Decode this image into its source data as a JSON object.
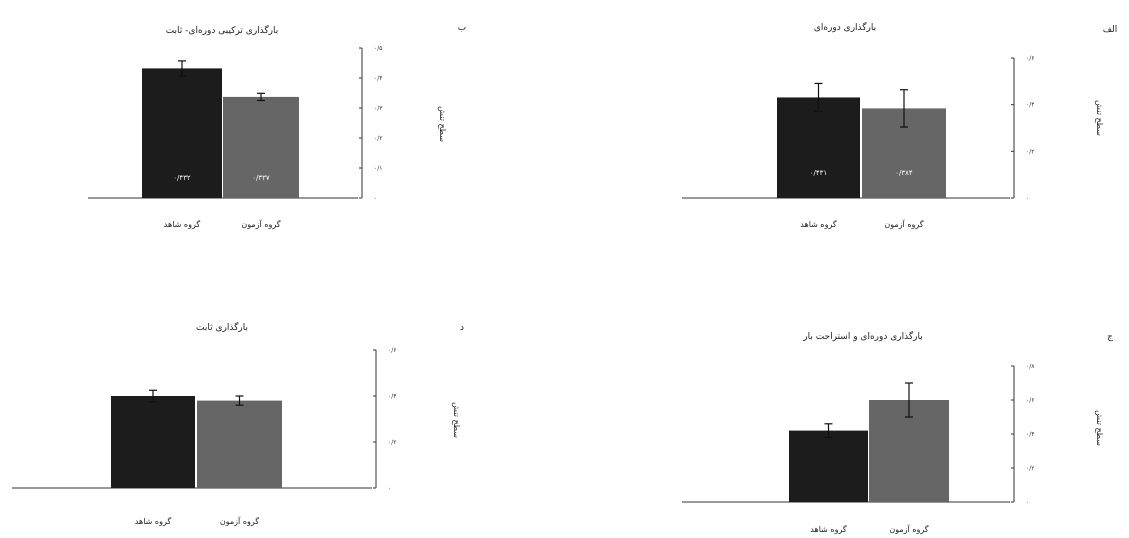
{
  "chart_data": [
    {
      "type": "bar",
      "panel_letter": "الف",
      "title": "بارگذاری دوره‌ای",
      "ylabel": "سطح تنش",
      "categories": [
        "گروه شاهد",
        "گروه آزمون"
      ],
      "values": [
        0.431,
        0.384
      ],
      "errors": [
        0.06,
        0.08
      ],
      "colors": [
        "#1c1c1c",
        "#666666"
      ],
      "data_labels": [
        "۰/۴۳۱",
        "۰/۳۸۴"
      ],
      "ylim": [
        0,
        0.6
      ],
      "yticks": [
        0,
        0.2,
        0.4,
        0.6
      ],
      "ytick_labels": [
        "۰",
        "۰/۲",
        "۰/۴",
        "۰/۶"
      ]
    },
    {
      "type": "bar",
      "panel_letter": "ب",
      "title": "بارگذاری ترکیبی دوره‌ای- ثابت",
      "ylabel": "سطح تنش",
      "categories": [
        "گروه شاهد",
        "گروه آزمون"
      ],
      "values": [
        0.432,
        0.337
      ],
      "errors": [
        0.025,
        0.012
      ],
      "colors": [
        "#1c1c1c",
        "#666666"
      ],
      "data_labels": [
        "۰/۴۳۲",
        "۰/۳۳۷"
      ],
      "ylim": [
        0,
        0.5
      ],
      "yticks": [
        0,
        0.1,
        0.2,
        0.3,
        0.4,
        0.5
      ],
      "ytick_labels": [
        "۰",
        "۰/۱",
        "۰/۲",
        "۰/۳",
        "۰/۴",
        "۰/۵"
      ]
    },
    {
      "type": "bar",
      "panel_letter": "ج",
      "title": "بارگذاری دوره‌ای و استراحت بار",
      "ylabel": "سطح تنش",
      "categories": [
        "گروه شاهد",
        "گروه آزمون"
      ],
      "values": [
        0.42,
        0.6
      ],
      "errors": [
        0.04,
        0.1
      ],
      "colors": [
        "#1c1c1c",
        "#666666"
      ],
      "data_labels": [
        "",
        ""
      ],
      "ylim": [
        0,
        0.8
      ],
      "yticks": [
        0,
        0.2,
        0.4,
        0.6,
        0.8
      ],
      "ytick_labels": [
        "۰",
        "۰/۲",
        "۰/۴",
        "۰/۶",
        "۰/۸"
      ]
    },
    {
      "type": "bar",
      "panel_letter": "د",
      "title": "بارگذاری ثابت",
      "ylabel": "سطح تنش",
      "categories": [
        "گروه شاهد",
        "گروه آزمون"
      ],
      "values": [
        0.4,
        0.38
      ],
      "errors": [
        0.025,
        0.02
      ],
      "colors": [
        "#1c1c1c",
        "#666666"
      ],
      "data_labels": [
        "",
        ""
      ],
      "ylim": [
        0,
        0.6
      ],
      "yticks": [
        0,
        0.2,
        0.4,
        0.6
      ],
      "ytick_labels": [
        "۰",
        "۰/۲",
        "۰/۴",
        "۰/۶"
      ]
    }
  ]
}
